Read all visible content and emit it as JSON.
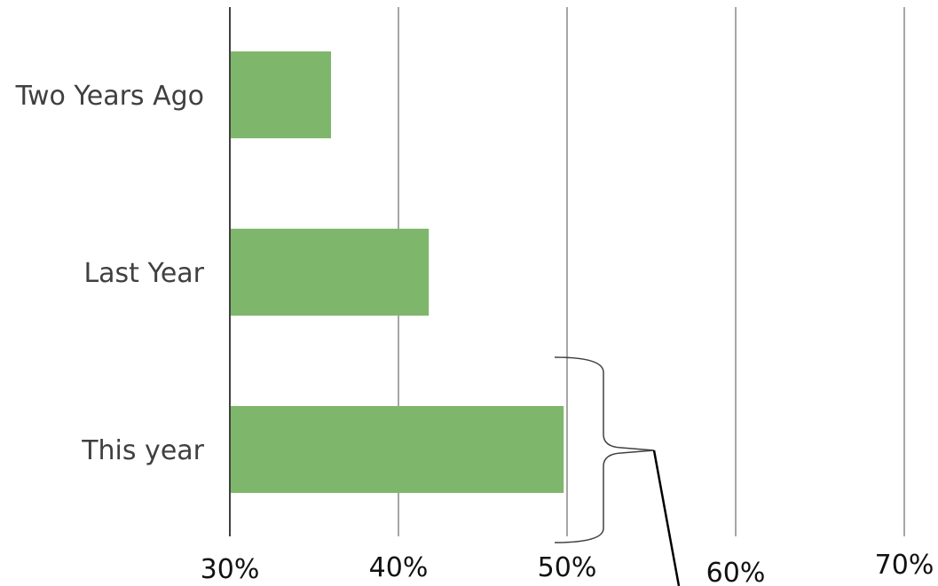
{
  "chart_data": {
    "type": "bar",
    "orientation": "horizontal",
    "categories": [
      "Two Years Ago",
      "Last Year",
      "This year"
    ],
    "values": [
      0.36,
      0.418,
      0.498
    ],
    "xlim": [
      0.3,
      0.7
    ],
    "xticks": [
      0.3,
      0.4,
      0.5,
      0.6,
      0.7
    ],
    "xtick_labels": [
      "30%",
      "40%",
      "50%",
      "60%",
      "70%"
    ],
    "grid": "vertical",
    "legend": "none",
    "annotation": "brace on This year bar with pointer line",
    "colors": {
      "bar": "#7eb76b",
      "grid": "#a6a6a6",
      "axis": "#404040",
      "text": "#404040"
    }
  }
}
